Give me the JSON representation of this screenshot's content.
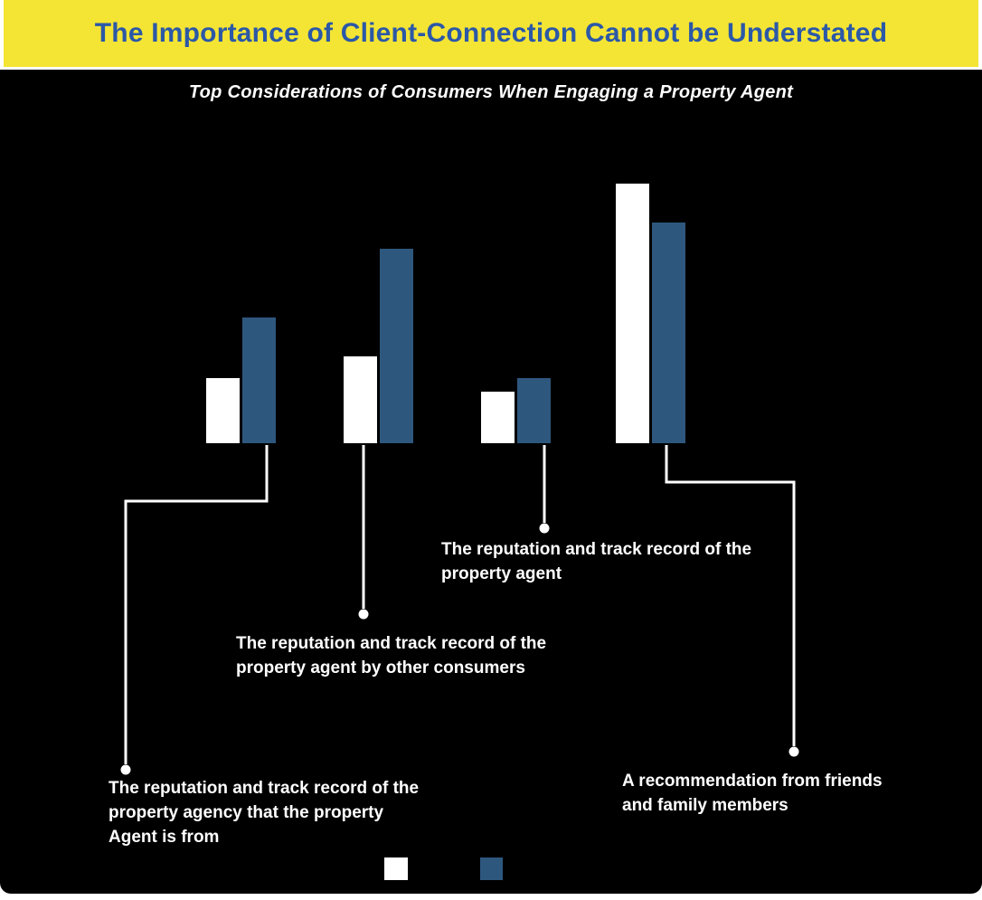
{
  "header": {
    "title": "The Importance of Client-Connection Cannot be Understated"
  },
  "colors": {
    "banner_yellow": "#F4E534",
    "title_blue": "#2B58A7",
    "panel_black": "#000000",
    "bar_white": "#FFFFFF",
    "bar_blue": "#2E577E",
    "callout_text": "#FFFFFF"
  },
  "chart_data": {
    "type": "bar",
    "title": "Top Considerations of Consumers When Engaging a Property Agent",
    "categories": [
      "The reputation and track record of the property agency that the property Agent is from",
      "The reputation and track record of the property agent by other consumers",
      "The reputation and track record of the property agent",
      "A recommendation from friends and family members"
    ],
    "series": [
      {
        "name": "white",
        "color": "#FFFFFF",
        "values": [
          15,
          20,
          12,
          60
        ]
      },
      {
        "name": "blue",
        "color": "#2E577E",
        "values": [
          29,
          45,
          15,
          51
        ]
      }
    ],
    "ylim": [
      0,
      62
    ],
    "units": "estimated percent (no value axis shown)",
    "value_axis_hidden": true,
    "grid": false,
    "legend_position": "bottom",
    "legend_labels_visible": false
  },
  "callouts": [
    {
      "label": "The reputation and track record of the property agency that the property Agent is from"
    },
    {
      "label": "The reputation and track record of the property agent by other consumers"
    },
    {
      "label": "The reputation and track record of the property agent"
    },
    {
      "label": "A recommendation from friends and family members"
    }
  ],
  "legend": {
    "items": [
      {
        "swatch_color": "#FFFFFF",
        "label": ""
      },
      {
        "swatch_color": "#2E577E",
        "label": ""
      }
    ]
  }
}
